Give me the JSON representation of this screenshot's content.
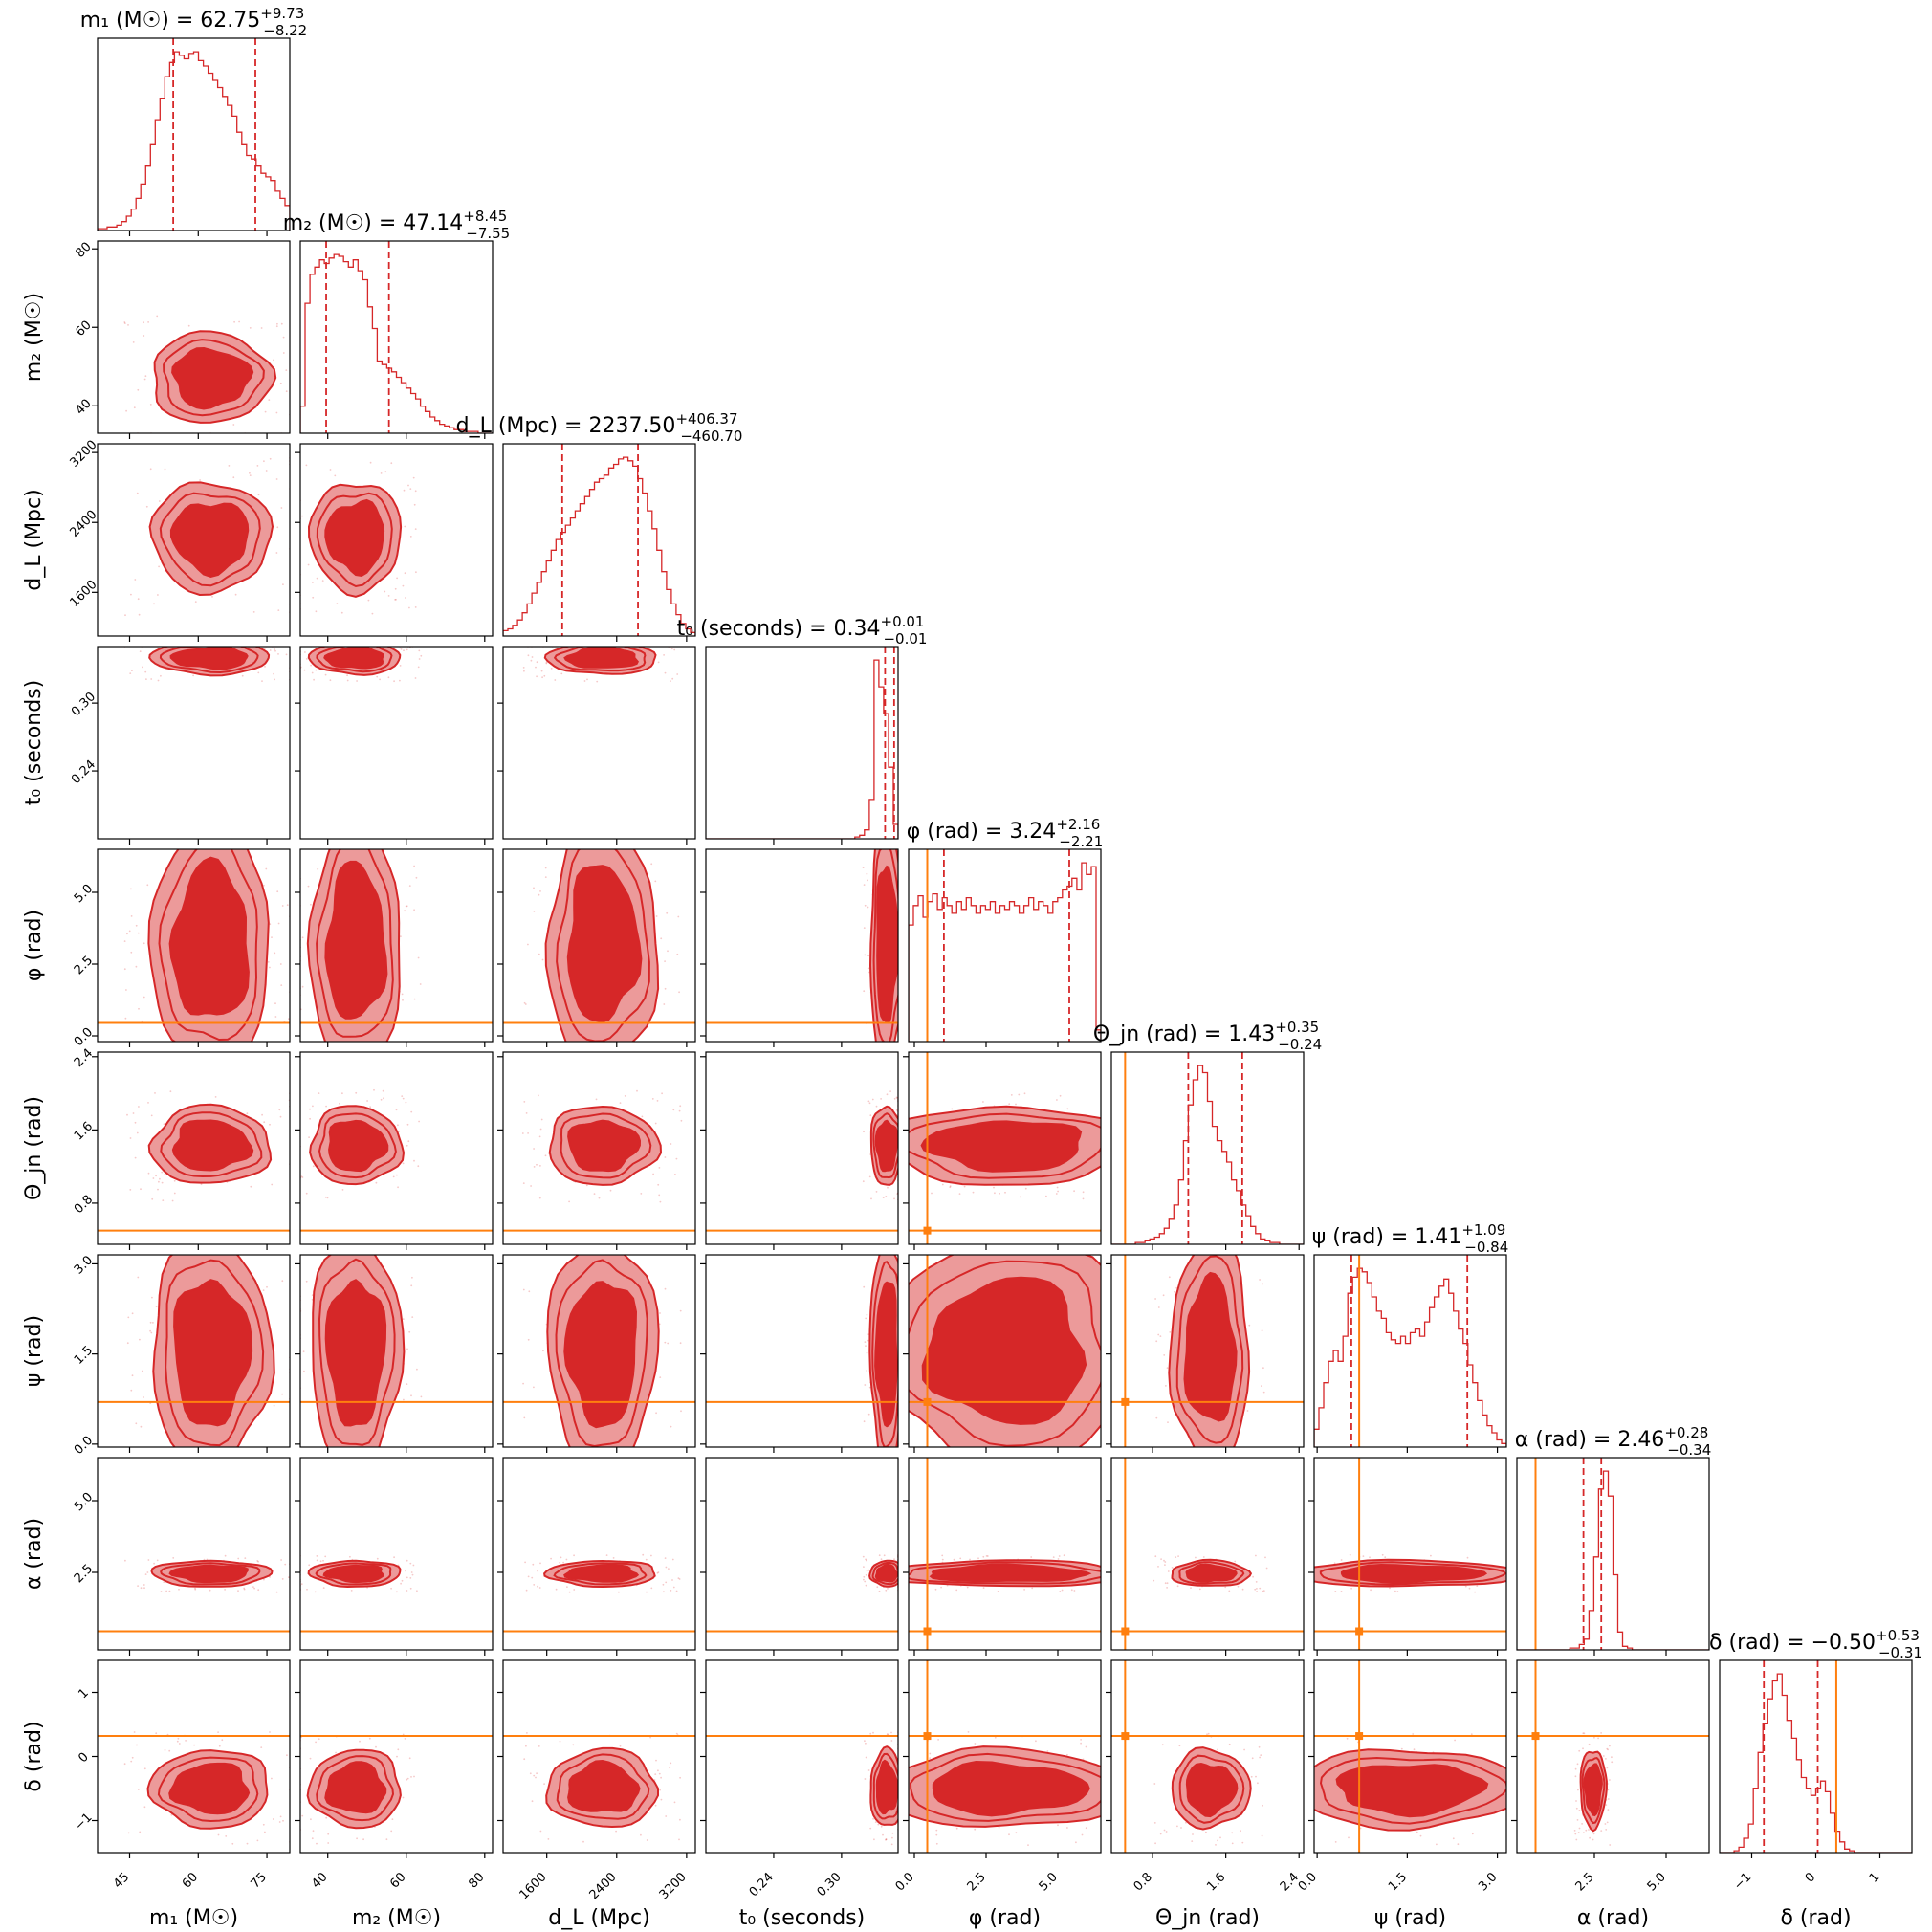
{
  "colors": {
    "posterior": "#d62728",
    "fill_inner": "#d62728",
    "fill_outer": "#ec9a9a",
    "truth": "#ff7f0e",
    "frame": "#000000"
  },
  "chart_data": {
    "type": "corner",
    "parameters": [
      {
        "key": "m1",
        "label": "m₁ (M☉)",
        "title": "m₁ (M☉) = 62.75",
        "median": 62.75,
        "plus": 9.73,
        "minus": 8.22,
        "plus_label": "+9.73",
        "minus_label": "−8.22",
        "range": [
          38,
          80
        ],
        "ticks": [
          45,
          60,
          75
        ],
        "tick_labels": [
          "45",
          "60",
          "75"
        ],
        "q_lo": 54.53,
        "q_hi": 72.48,
        "truth": null,
        "hist": [
          1,
          1,
          2,
          2,
          3,
          5,
          8,
          12,
          18,
          26,
          36,
          48,
          62,
          74,
          86,
          94,
          100,
          98,
          96,
          99,
          100,
          95,
          92,
          88,
          84,
          80,
          75,
          70,
          64,
          55,
          48,
          42,
          40,
          36,
          32,
          30,
          28,
          22,
          18,
          14
        ]
      },
      {
        "key": "m2",
        "label": "m₂ (M☉)",
        "title": "m₂ (M☉) = 47.14",
        "median": 47.14,
        "plus": 8.45,
        "minus": 7.55,
        "plus_label": "+8.45",
        "minus_label": "−7.55",
        "range": [
          33,
          82
        ],
        "ticks": [
          40,
          60,
          80
        ],
        "tick_labels": [
          "40",
          "60",
          "80"
        ],
        "q_lo": 39.59,
        "q_hi": 55.59,
        "truth": null,
        "hist": [
          15,
          72,
          88,
          92,
          96,
          94,
          97,
          99,
          98,
          95,
          92,
          96,
          90,
          85,
          70,
          58,
          40,
          38,
          36,
          34,
          31,
          28,
          25,
          22,
          19,
          15,
          12,
          9,
          7,
          5,
          4,
          3,
          2,
          2,
          1,
          1,
          1,
          0,
          0,
          0
        ]
      },
      {
        "key": "dL",
        "label": "d_L (Mpc)",
        "title": "d_L (Mpc) = 2237.50",
        "median": 2237.5,
        "plus": 406.37,
        "minus": 460.7,
        "plus_label": "+406.37",
        "minus_label": "−460.70",
        "range": [
          1100,
          3300
        ],
        "ticks": [
          1600,
          2400,
          3200
        ],
        "tick_labels": [
          "1600",
          "2400",
          "3200"
        ],
        "q_lo": 1776.8,
        "q_hi": 2643.87,
        "truth": null,
        "hist": [
          3,
          4,
          6,
          9,
          13,
          18,
          24,
          30,
          36,
          42,
          48,
          54,
          58,
          62,
          66,
          70,
          74,
          78,
          82,
          86,
          88,
          90,
          94,
          96,
          99,
          100,
          98,
          95,
          88,
          80,
          70,
          60,
          48,
          36,
          26,
          18,
          12,
          7,
          4,
          2
        ]
      },
      {
        "key": "t0",
        "label": "t₀ (seconds)",
        "title": "t₀ (seconds) = 0.34",
        "median": 0.34,
        "plus": 0.01,
        "minus": 0.01,
        "plus_label": "+0.01",
        "minus_label": "−0.01",
        "range": [
          0.18,
          0.35
        ],
        "ticks": [
          0.24,
          0.3
        ],
        "tick_labels": [
          "0.24",
          "0.30"
        ],
        "q_lo": 0.3385,
        "q_hi": 0.3465,
        "truth": null,
        "hist": [
          0,
          0,
          0,
          0,
          0,
          0,
          0,
          0,
          0,
          0,
          0,
          0,
          0,
          0,
          0,
          0,
          0,
          0,
          0,
          0,
          0,
          0,
          0,
          0,
          0,
          0,
          0,
          0,
          0,
          0,
          0,
          1,
          2,
          5,
          22,
          100,
          85,
          70,
          40,
          8
        ]
      },
      {
        "key": "phi",
        "label": "φ (rad)",
        "title": "φ (rad) = 3.24",
        "median": 3.24,
        "plus": 2.16,
        "minus": 2.21,
        "plus_label": "+2.16",
        "minus_label": "−2.21",
        "range": [
          -0.2,
          6.5
        ],
        "ticks": [
          0.0,
          2.5,
          5.0
        ],
        "tick_labels": [
          "0.0",
          "2.5",
          "5.0"
        ],
        "q_lo": 1.03,
        "q_hi": 5.4,
        "truth": 0.45,
        "hist": [
          60,
          70,
          75,
          64,
          72,
          76,
          68,
          74,
          70,
          66,
          72,
          68,
          74,
          70,
          66,
          70,
          68,
          72,
          66,
          70,
          68,
          72,
          70,
          66,
          70,
          74,
          68,
          72,
          70,
          66,
          72,
          74,
          78,
          80,
          84,
          78,
          92,
          86,
          90,
          6
        ]
      },
      {
        "key": "theta",
        "label": "Θ_jn (rad)",
        "title": "Θ_jn (rad) = 1.43",
        "median": 1.43,
        "plus": 0.35,
        "minus": 0.24,
        "plus_label": "+0.35",
        "minus_label": "−0.24",
        "range": [
          0.35,
          2.45
        ],
        "ticks": [
          0.8,
          1.6,
          2.4
        ],
        "tick_labels": [
          "0.8",
          "1.6",
          "2.4"
        ],
        "q_lo": 1.19,
        "q_hi": 1.78,
        "truth": 0.5,
        "hist": [
          0,
          0,
          0,
          0,
          0,
          1,
          1,
          2,
          3,
          4,
          6,
          9,
          14,
          22,
          36,
          58,
          78,
          92,
          100,
          96,
          80,
          66,
          58,
          52,
          46,
          36,
          30,
          22,
          16,
          10,
          6,
          3,
          2,
          1,
          1,
          0,
          0,
          0,
          0,
          0
        ]
      },
      {
        "key": "psi",
        "label": "ψ (rad)",
        "title": "ψ (rad) = 1.41",
        "median": 1.41,
        "plus": 1.09,
        "minus": 0.84,
        "plus_label": "+1.09",
        "minus_label": "−0.84",
        "range": [
          -0.05,
          3.15
        ],
        "ticks": [
          0.0,
          1.5,
          3.0
        ],
        "tick_labels": [
          "0.0",
          "1.5",
          "3.0"
        ],
        "q_lo": 0.57,
        "q_hi": 2.5,
        "truth": 0.7,
        "hist": [
          10,
          22,
          36,
          48,
          54,
          48,
          62,
          86,
          95,
          100,
          98,
          92,
          84,
          76,
          72,
          64,
          60,
          58,
          62,
          58,
          64,
          66,
          62,
          70,
          78,
          84,
          90,
          94,
          86,
          76,
          66,
          58,
          46,
          36,
          26,
          18,
          12,
          8,
          4,
          2
        ]
      },
      {
        "key": "alpha",
        "label": "α (rad)",
        "title": "α (rad) = 2.46",
        "median": 2.46,
        "plus": 0.28,
        "minus": 0.34,
        "plus_label": "+0.28",
        "minus_label": "−0.34",
        "range": [
          -0.2,
          6.5
        ],
        "ticks": [
          2.5,
          5.0
        ],
        "tick_labels": [
          "2.5",
          "5.0"
        ],
        "q_lo": 2.12,
        "q_hi": 2.74,
        "truth": 0.45,
        "hist": [
          0,
          0,
          0,
          0,
          0,
          0,
          0,
          0,
          0,
          0,
          0,
          1,
          1,
          3,
          6,
          22,
          52,
          90,
          100,
          86,
          42,
          10,
          2,
          1,
          0,
          0,
          0,
          0,
          0,
          0,
          0,
          0,
          0,
          0,
          0,
          0,
          0,
          0,
          0,
          0
        ]
      },
      {
        "key": "delta",
        "label": "δ (rad)",
        "title": "δ (rad) = −0.50",
        "median": -0.5,
        "plus": 0.53,
        "minus": 0.31,
        "plus_label": "+0.53",
        "minus_label": "−0.31",
        "range": [
          -1.5,
          1.5
        ],
        "ticks": [
          -1,
          0,
          1
        ],
        "tick_labels": [
          "−1",
          "0",
          "1"
        ],
        "q_lo": -0.81,
        "q_hi": 0.03,
        "truth": 0.32,
        "hist": [
          0,
          0,
          0,
          1,
          3,
          8,
          16,
          36,
          56,
          72,
          86,
          96,
          100,
          88,
          74,
          64,
          52,
          42,
          36,
          32,
          36,
          40,
          34,
          22,
          12,
          6,
          2,
          1,
          0,
          0,
          0,
          0,
          0,
          0,
          0,
          0,
          0,
          0,
          0,
          0
        ]
      }
    ]
  }
}
